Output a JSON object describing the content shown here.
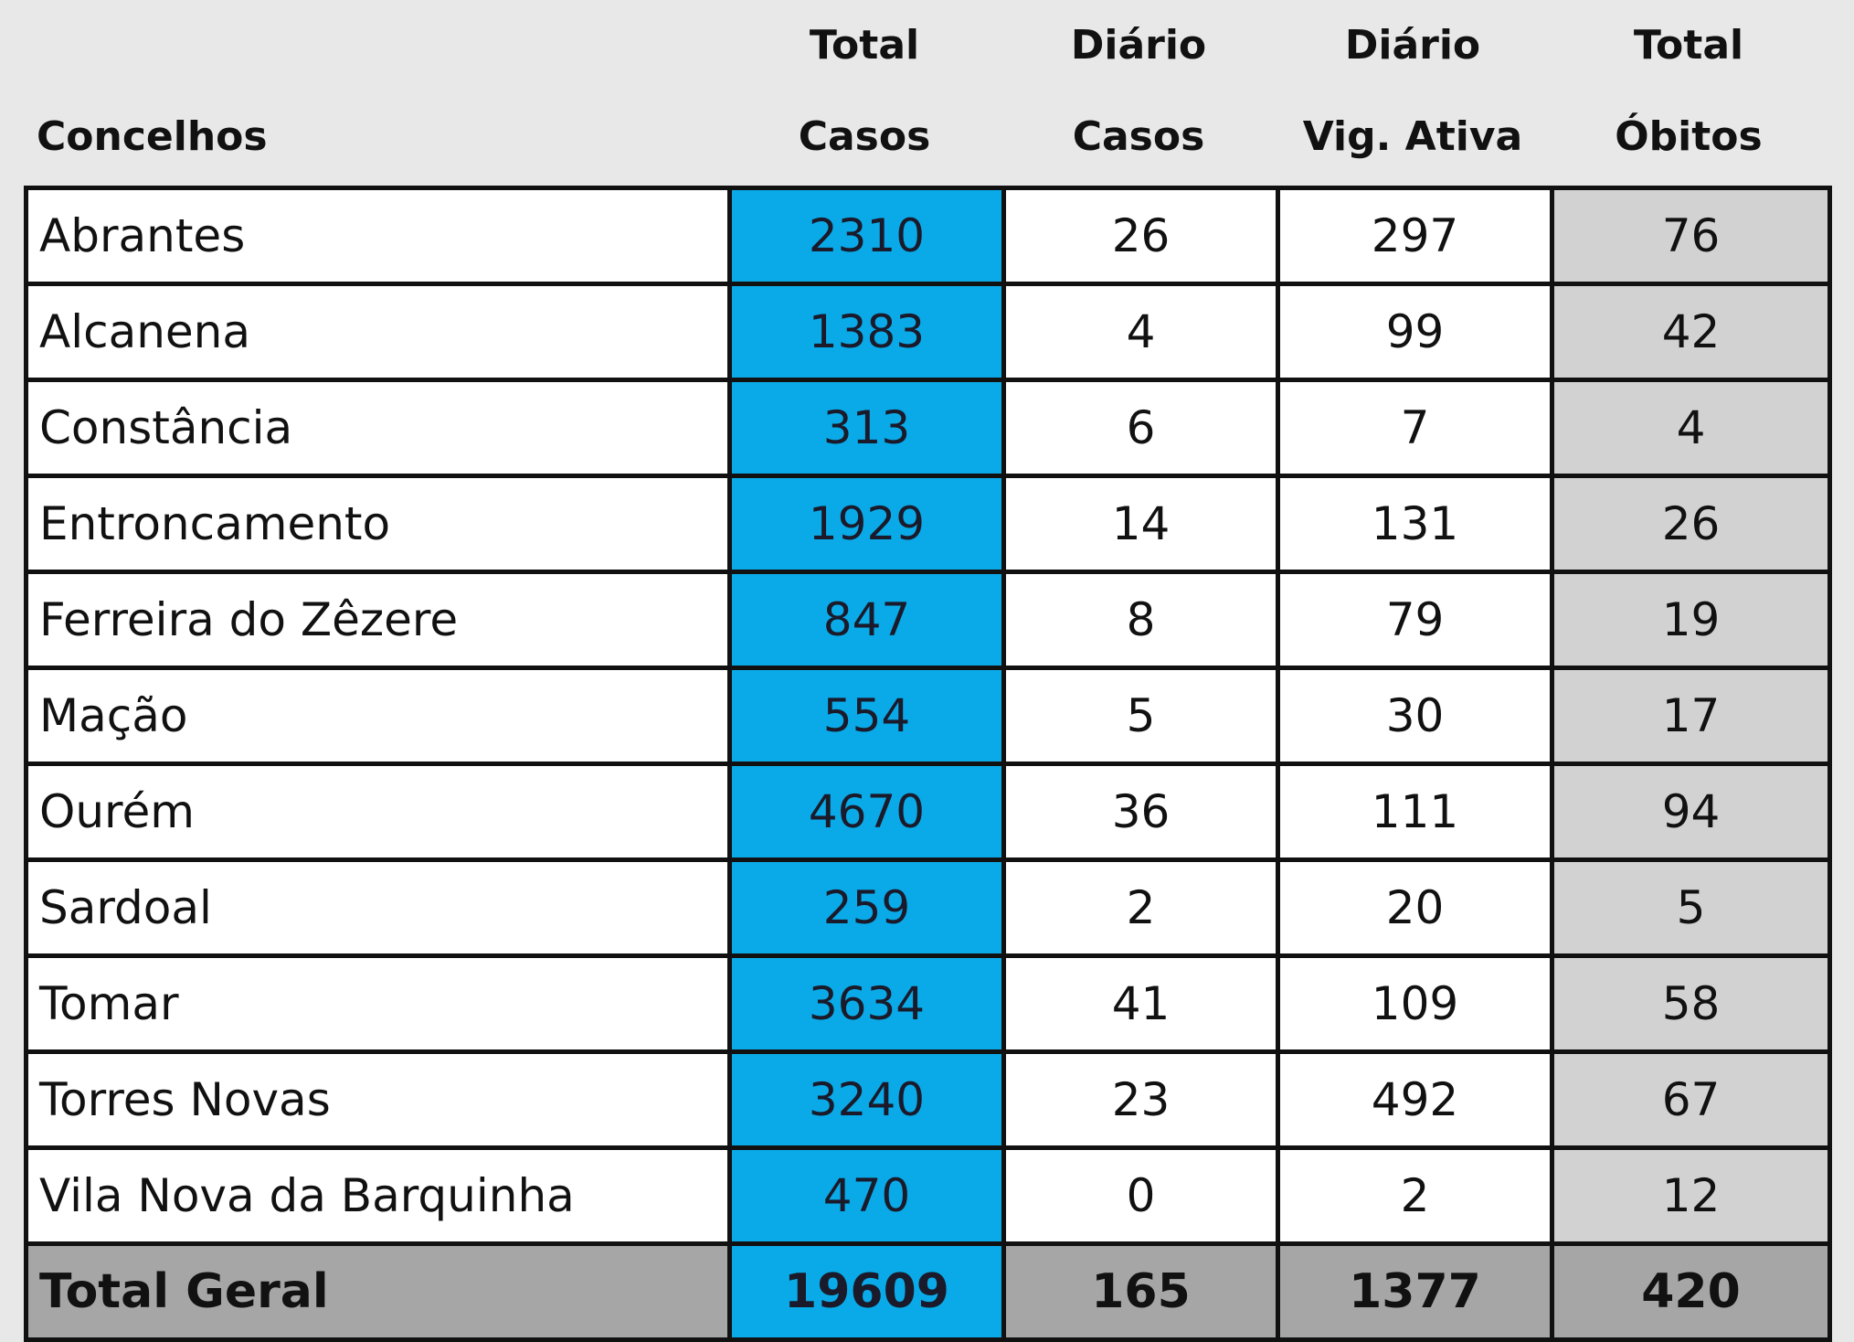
{
  "chart_data": {
    "type": "table",
    "columns": [
      {
        "line1": "",
        "line2": "Concelhos"
      },
      {
        "line1": "Total",
        "line2": "Casos"
      },
      {
        "line1": "Diário",
        "line2": "Casos"
      },
      {
        "line1": "Diário",
        "line2": "Vig. Ativa"
      },
      {
        "line1": "Total",
        "line2": "Óbitos"
      }
    ],
    "rows": [
      [
        "Abrantes",
        "2310",
        "26",
        "297",
        "76"
      ],
      [
        "Alcanena",
        "1383",
        "4",
        "99",
        "42"
      ],
      [
        "Constância",
        "313",
        "6",
        "7",
        "4"
      ],
      [
        "Entroncamento",
        "1929",
        "14",
        "131",
        "26"
      ],
      [
        "Ferreira do Zêzere",
        "847",
        "8",
        "79",
        "19"
      ],
      [
        "Mação",
        "554",
        "5",
        "30",
        "17"
      ],
      [
        "Ourém",
        "4670",
        "36",
        "111",
        "94"
      ],
      [
        "Sardoal",
        "259",
        "2",
        "20",
        "5"
      ],
      [
        "Tomar",
        "3634",
        "41",
        "109",
        "58"
      ],
      [
        "Torres Novas",
        "3240",
        "23",
        "492",
        "67"
      ],
      [
        "Vila Nova da Barquinha",
        "470",
        "0",
        "2",
        "12"
      ]
    ],
    "total_row": [
      "Total Geral",
      "19609",
      "165",
      "1377",
      "420"
    ],
    "colors": {
      "total_cases_column": "#0aaae8",
      "obitos_column": "#d2d2d2",
      "total_row": "#a6a6a6",
      "background": "#e8e8e9"
    }
  }
}
